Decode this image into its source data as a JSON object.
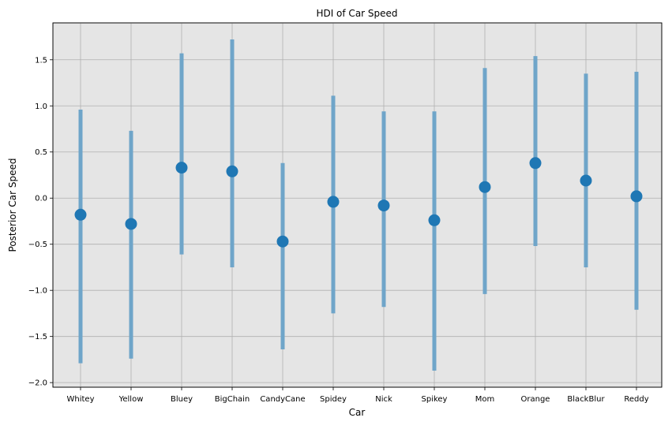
{
  "chart_data": {
    "type": "errorbar",
    "title": "HDI of Car Speed",
    "xlabel": "Car",
    "ylabel": "Posterior Car Speed",
    "ylim": [
      -2.05,
      1.9
    ],
    "yticks": [
      -2.0,
      -1.5,
      -1.0,
      -0.5,
      0.0,
      0.5,
      1.0,
      1.5
    ],
    "ytick_labels": [
      "−2.0",
      "−1.5",
      "−1.0",
      "−0.5",
      "0.0",
      "0.5",
      "1.0",
      "1.5"
    ],
    "grid": true,
    "colors": {
      "point": "#1f77b4",
      "interval": "#6fa5c9",
      "background": "#e5e5e5",
      "grid": "#b0b0b0"
    },
    "categories": [
      "Whitey",
      "Yellow",
      "Bluey",
      "BigChain",
      "CandyCane",
      "Spidey",
      "Nick",
      "Spikey",
      "Mom",
      "Orange",
      "BlackBlur",
      "Reddy"
    ],
    "mean": [
      -0.18,
      -0.28,
      0.33,
      0.29,
      -0.47,
      -0.04,
      -0.08,
      -0.24,
      0.12,
      0.38,
      0.19,
      0.02
    ],
    "hdi_low": [
      -1.79,
      -1.74,
      -0.61,
      -0.75,
      -1.64,
      -1.25,
      -1.18,
      -1.87,
      -1.04,
      -0.52,
      -0.75,
      -1.21
    ],
    "hdi_high": [
      0.96,
      0.73,
      1.57,
      1.72,
      0.38,
      1.11,
      0.94,
      0.94,
      1.41,
      1.54,
      1.35,
      1.37
    ]
  }
}
